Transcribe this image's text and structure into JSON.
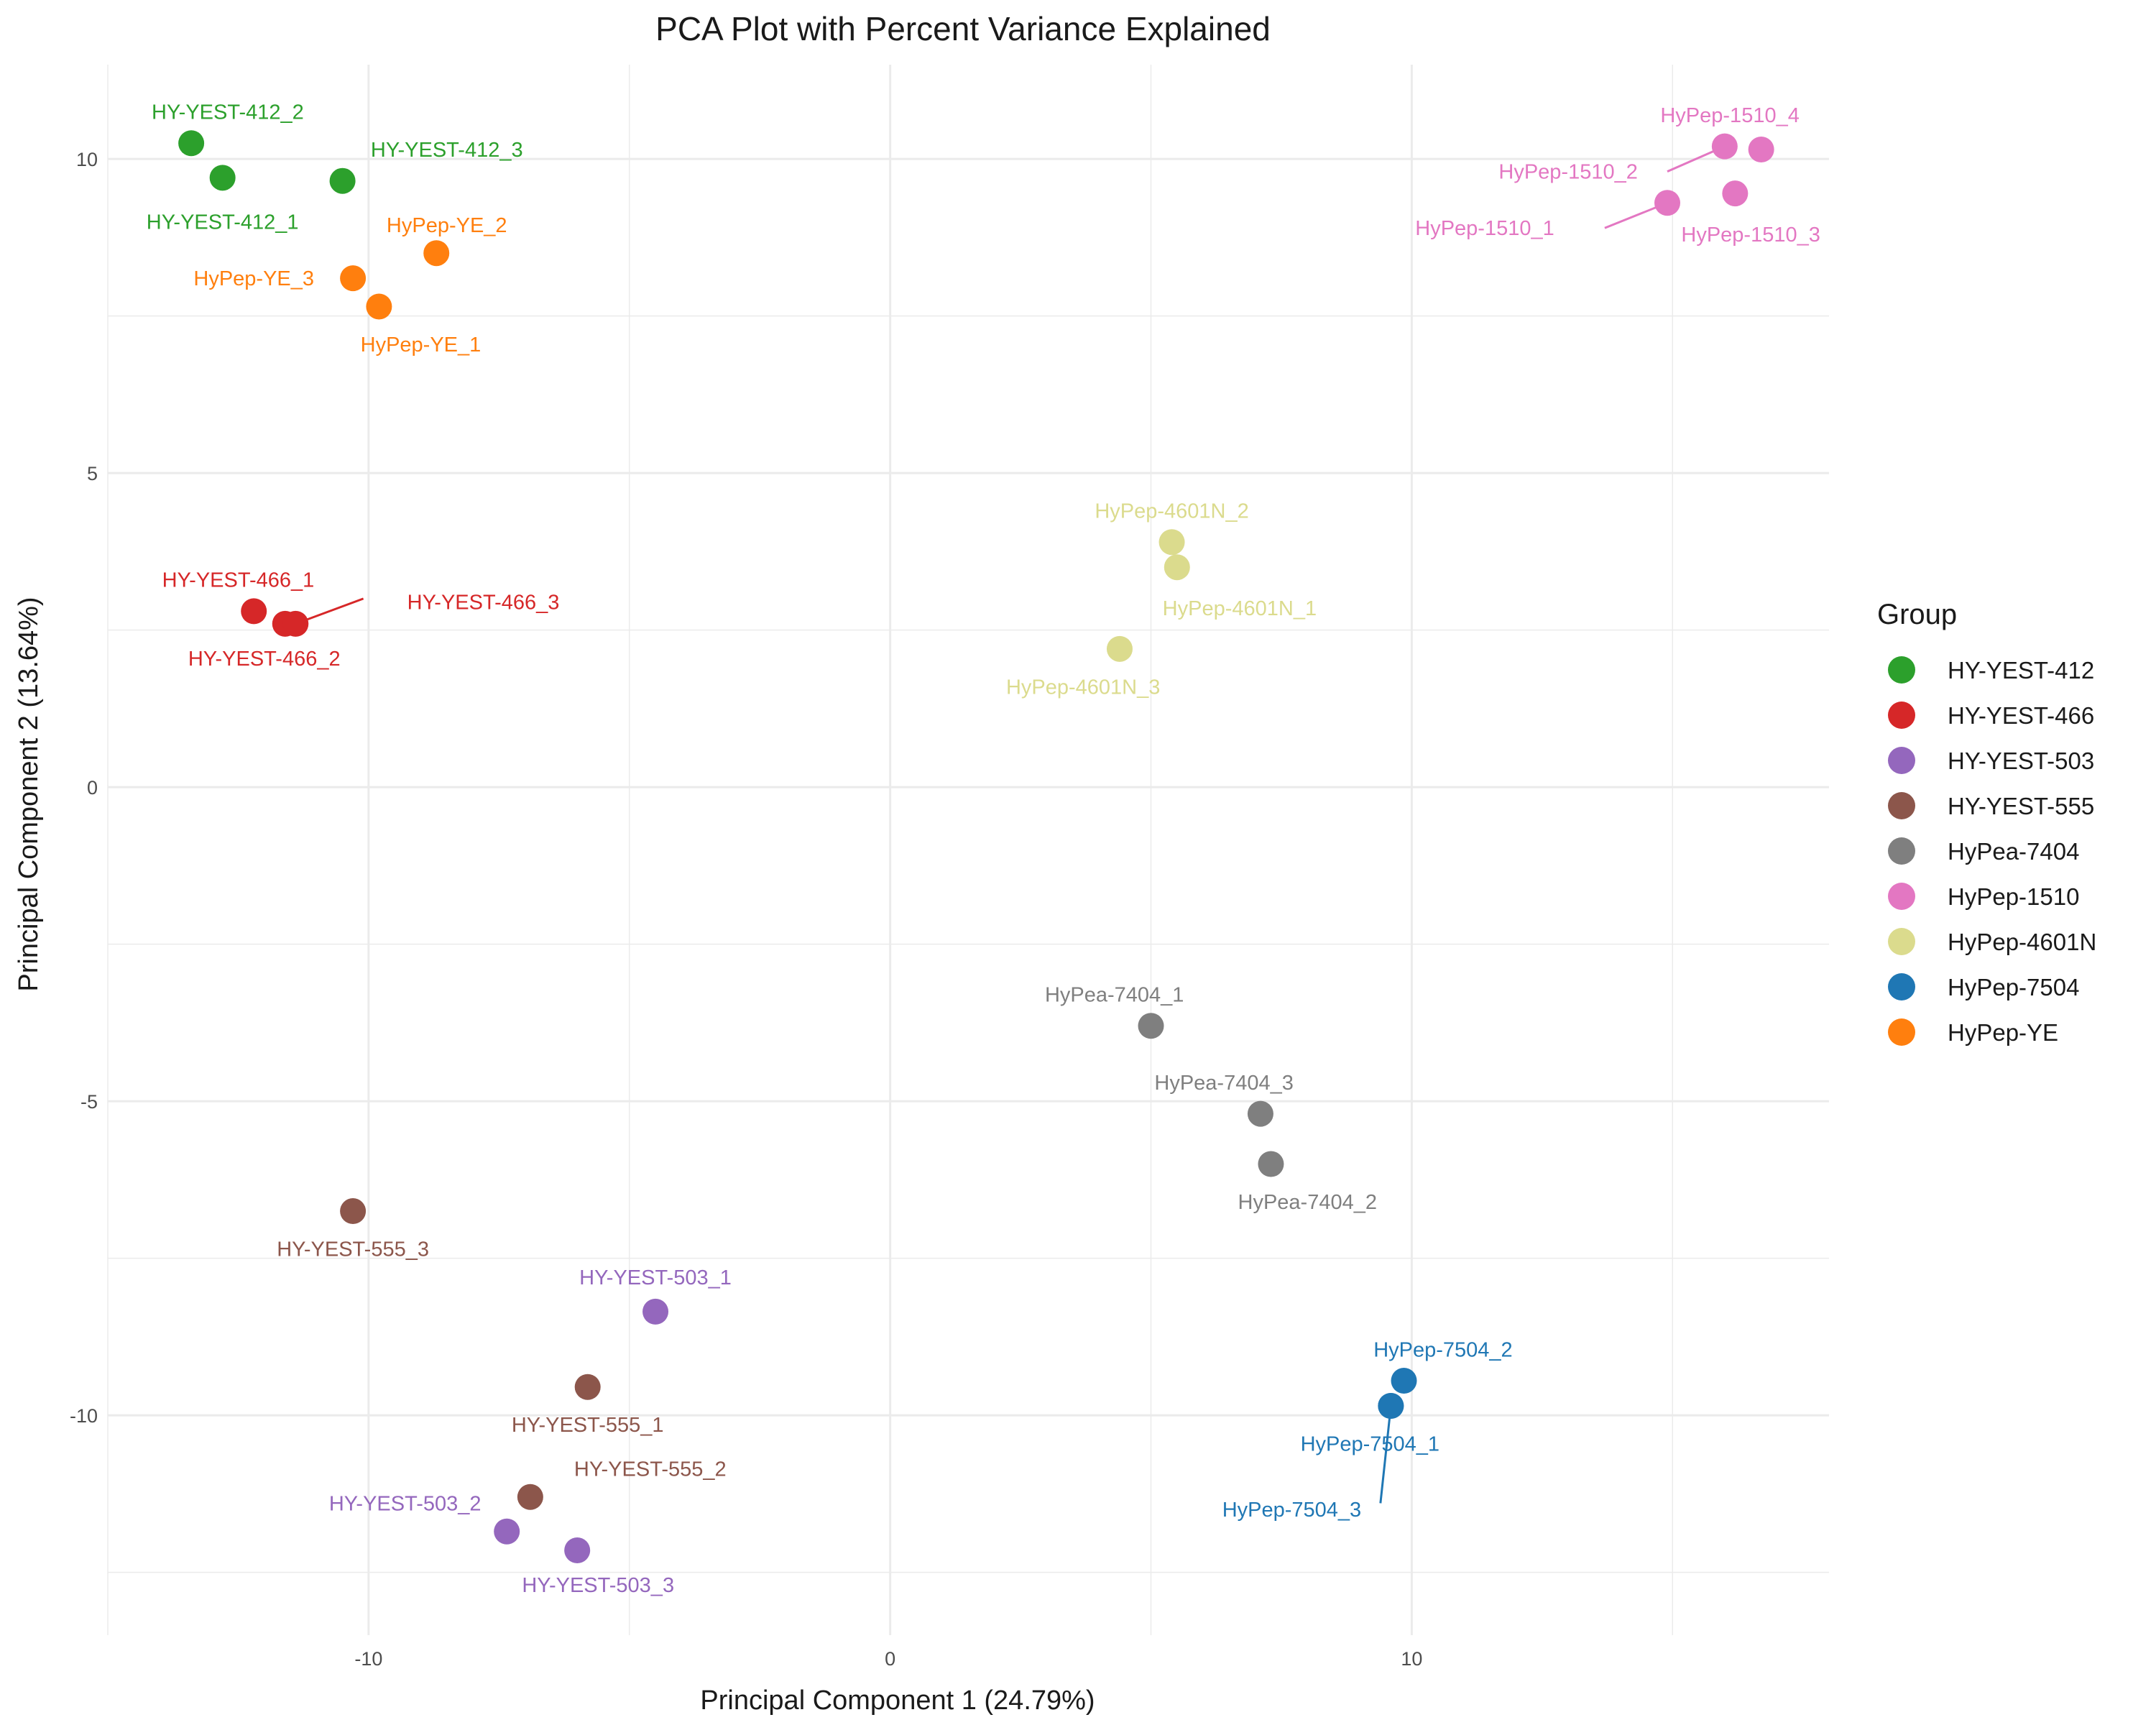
{
  "chart_data": {
    "type": "scatter",
    "title": "PCA Plot with Percent Variance Explained",
    "xlabel": "Principal Component 1 (24.79%)",
    "ylabel": "Principal Component 2 (13.64%)",
    "xlim": [
      -15,
      18
    ],
    "ylim": [
      -13.5,
      11.5
    ],
    "x_ticks": [
      -10,
      0,
      10
    ],
    "x_tick_labels": [
      "-10",
      "0",
      "10"
    ],
    "y_ticks": [
      -10,
      -5,
      0,
      5,
      10
    ],
    "y_tick_labels": [
      "-10",
      "-5",
      "0",
      "5",
      "10"
    ],
    "grid": true,
    "legend_title": "Group",
    "legend_position": "right",
    "groups": [
      {
        "name": "HY-YEST-412",
        "color": "#2ca02c"
      },
      {
        "name": "HY-YEST-466",
        "color": "#d62728"
      },
      {
        "name": "HY-YEST-503",
        "color": "#9467bd"
      },
      {
        "name": "HY-YEST-555",
        "color": "#8c564b"
      },
      {
        "name": "HyPea-7404",
        "color": "#7f7f7f"
      },
      {
        "name": "HyPep-1510",
        "color": "#e377c2"
      },
      {
        "name": "HyPep-4601N",
        "color": "#dbdb8d"
      },
      {
        "name": "HyPep-7504",
        "color": "#1f77b4"
      },
      {
        "name": "HyPep-YE",
        "color": "#ff7f0e"
      }
    ],
    "points": [
      {
        "label": "HY-YEST-412_1",
        "group": "HY-YEST-412",
        "x": -12.8,
        "y": 9.7,
        "lx": -12.8,
        "ly": 9.0,
        "leader": false
      },
      {
        "label": "HY-YEST-412_2",
        "group": "HY-YEST-412",
        "x": -13.4,
        "y": 10.25,
        "lx": -12.7,
        "ly": 10.75,
        "leader": false
      },
      {
        "label": "HY-YEST-412_3",
        "group": "HY-YEST-412",
        "x": -10.5,
        "y": 9.65,
        "lx": -8.5,
        "ly": 10.15,
        "leader": false
      },
      {
        "label": "HyPep-YE_1",
        "group": "HyPep-YE",
        "x": -9.8,
        "y": 7.65,
        "lx": -9.0,
        "ly": 7.05,
        "leader": false
      },
      {
        "label": "HyPep-YE_2",
        "group": "HyPep-YE",
        "x": -8.7,
        "y": 8.5,
        "lx": -8.5,
        "ly": 8.95,
        "leader": false
      },
      {
        "label": "HyPep-YE_3",
        "group": "HyPep-YE",
        "x": -10.3,
        "y": 8.1,
        "lx": -12.2,
        "ly": 8.1,
        "leader": false
      },
      {
        "label": "HY-YEST-466_1",
        "group": "HY-YEST-466",
        "x": -12.2,
        "y": 2.8,
        "lx": -12.5,
        "ly": 3.3,
        "leader": false
      },
      {
        "label": "HY-YEST-466_2",
        "group": "HY-YEST-466",
        "x": -11.6,
        "y": 2.6,
        "lx": -12.0,
        "ly": 2.05,
        "leader": false
      },
      {
        "label": "HY-YEST-466_3",
        "group": "HY-YEST-466",
        "x": -11.4,
        "y": 2.6,
        "lx": -7.8,
        "ly": 2.95,
        "leader": true,
        "leader_to": [
          -10.1,
          3.0
        ]
      },
      {
        "label": "HyPep-4601N_1",
        "group": "HyPep-4601N",
        "x": 5.5,
        "y": 3.5,
        "lx": 6.7,
        "ly": 2.85,
        "leader": false
      },
      {
        "label": "HyPep-4601N_2",
        "group": "HyPep-4601N",
        "x": 5.4,
        "y": 3.9,
        "lx": 5.4,
        "ly": 4.4,
        "leader": false
      },
      {
        "label": "HyPep-4601N_3",
        "group": "HyPep-4601N",
        "x": 4.4,
        "y": 2.2,
        "lx": 3.7,
        "ly": 1.6,
        "leader": false
      },
      {
        "label": "HyPep-1510_1",
        "group": "HyPep-1510",
        "x": 14.9,
        "y": 9.3,
        "lx": 11.4,
        "ly": 8.9,
        "leader": true,
        "leader_to": [
          13.7,
          8.9
        ]
      },
      {
        "label": "HyPep-1510_2",
        "group": "HyPep-1510",
        "x": 16.0,
        "y": 10.2,
        "lx": 13.0,
        "ly": 9.8,
        "leader": true,
        "leader_to": [
          14.9,
          9.8
        ]
      },
      {
        "label": "HyPep-1510_3",
        "group": "HyPep-1510",
        "x": 16.2,
        "y": 9.45,
        "lx": 16.5,
        "ly": 8.8,
        "leader": false
      },
      {
        "label": "HyPep-1510_4",
        "group": "HyPep-1510",
        "x": 16.7,
        "y": 10.15,
        "lx": 16.1,
        "ly": 10.7,
        "leader": false
      },
      {
        "label": "HyPea-7404_1",
        "group": "HyPea-7404",
        "x": 5.0,
        "y": -3.8,
        "lx": 4.3,
        "ly": -3.3,
        "leader": false
      },
      {
        "label": "HyPea-7404_2",
        "group": "HyPea-7404",
        "x": 7.3,
        "y": -6.0,
        "lx": 8.0,
        "ly": -6.6,
        "leader": false
      },
      {
        "label": "HyPea-7404_3",
        "group": "HyPea-7404",
        "x": 7.1,
        "y": -5.2,
        "lx": 6.4,
        "ly": -4.7,
        "leader": false
      },
      {
        "label": "HY-YEST-555_1",
        "group": "HY-YEST-555",
        "x": -5.8,
        "y": -9.55,
        "lx": -5.8,
        "ly": -10.15,
        "leader": false
      },
      {
        "label": "HY-YEST-555_2",
        "group": "HY-YEST-555",
        "x": -6.9,
        "y": -11.3,
        "lx": -4.6,
        "ly": -10.85,
        "leader": false
      },
      {
        "label": "HY-YEST-555_3",
        "group": "HY-YEST-555",
        "x": -10.3,
        "y": -6.75,
        "lx": -10.3,
        "ly": -7.35,
        "leader": false
      },
      {
        "label": "HY-YEST-503_1",
        "group": "HY-YEST-503",
        "x": -4.5,
        "y": -8.35,
        "lx": -4.5,
        "ly": -7.8,
        "leader": false
      },
      {
        "label": "HY-YEST-503_2",
        "group": "HY-YEST-503",
        "x": -7.35,
        "y": -11.85,
        "lx": -9.3,
        "ly": -11.4,
        "leader": false
      },
      {
        "label": "HY-YEST-503_3",
        "group": "HY-YEST-503",
        "x": -6.0,
        "y": -12.15,
        "lx": -5.6,
        "ly": -12.7,
        "leader": false
      },
      {
        "label": "HyPep-7504_1",
        "group": "HyPep-7504",
        "x": 9.6,
        "y": -9.85,
        "lx": 9.2,
        "ly": -10.45,
        "leader": false
      },
      {
        "label": "HyPep-7504_2",
        "group": "HyPep-7504",
        "x": 9.85,
        "y": -9.45,
        "lx": 10.6,
        "ly": -8.95,
        "leader": false
      },
      {
        "label": "HyPep-7504_3",
        "group": "HyPep-7504",
        "x": 9.6,
        "y": -9.85,
        "lx": 7.7,
        "ly": -11.5,
        "leader": true,
        "leader_to": [
          9.4,
          -11.4
        ]
      }
    ]
  }
}
